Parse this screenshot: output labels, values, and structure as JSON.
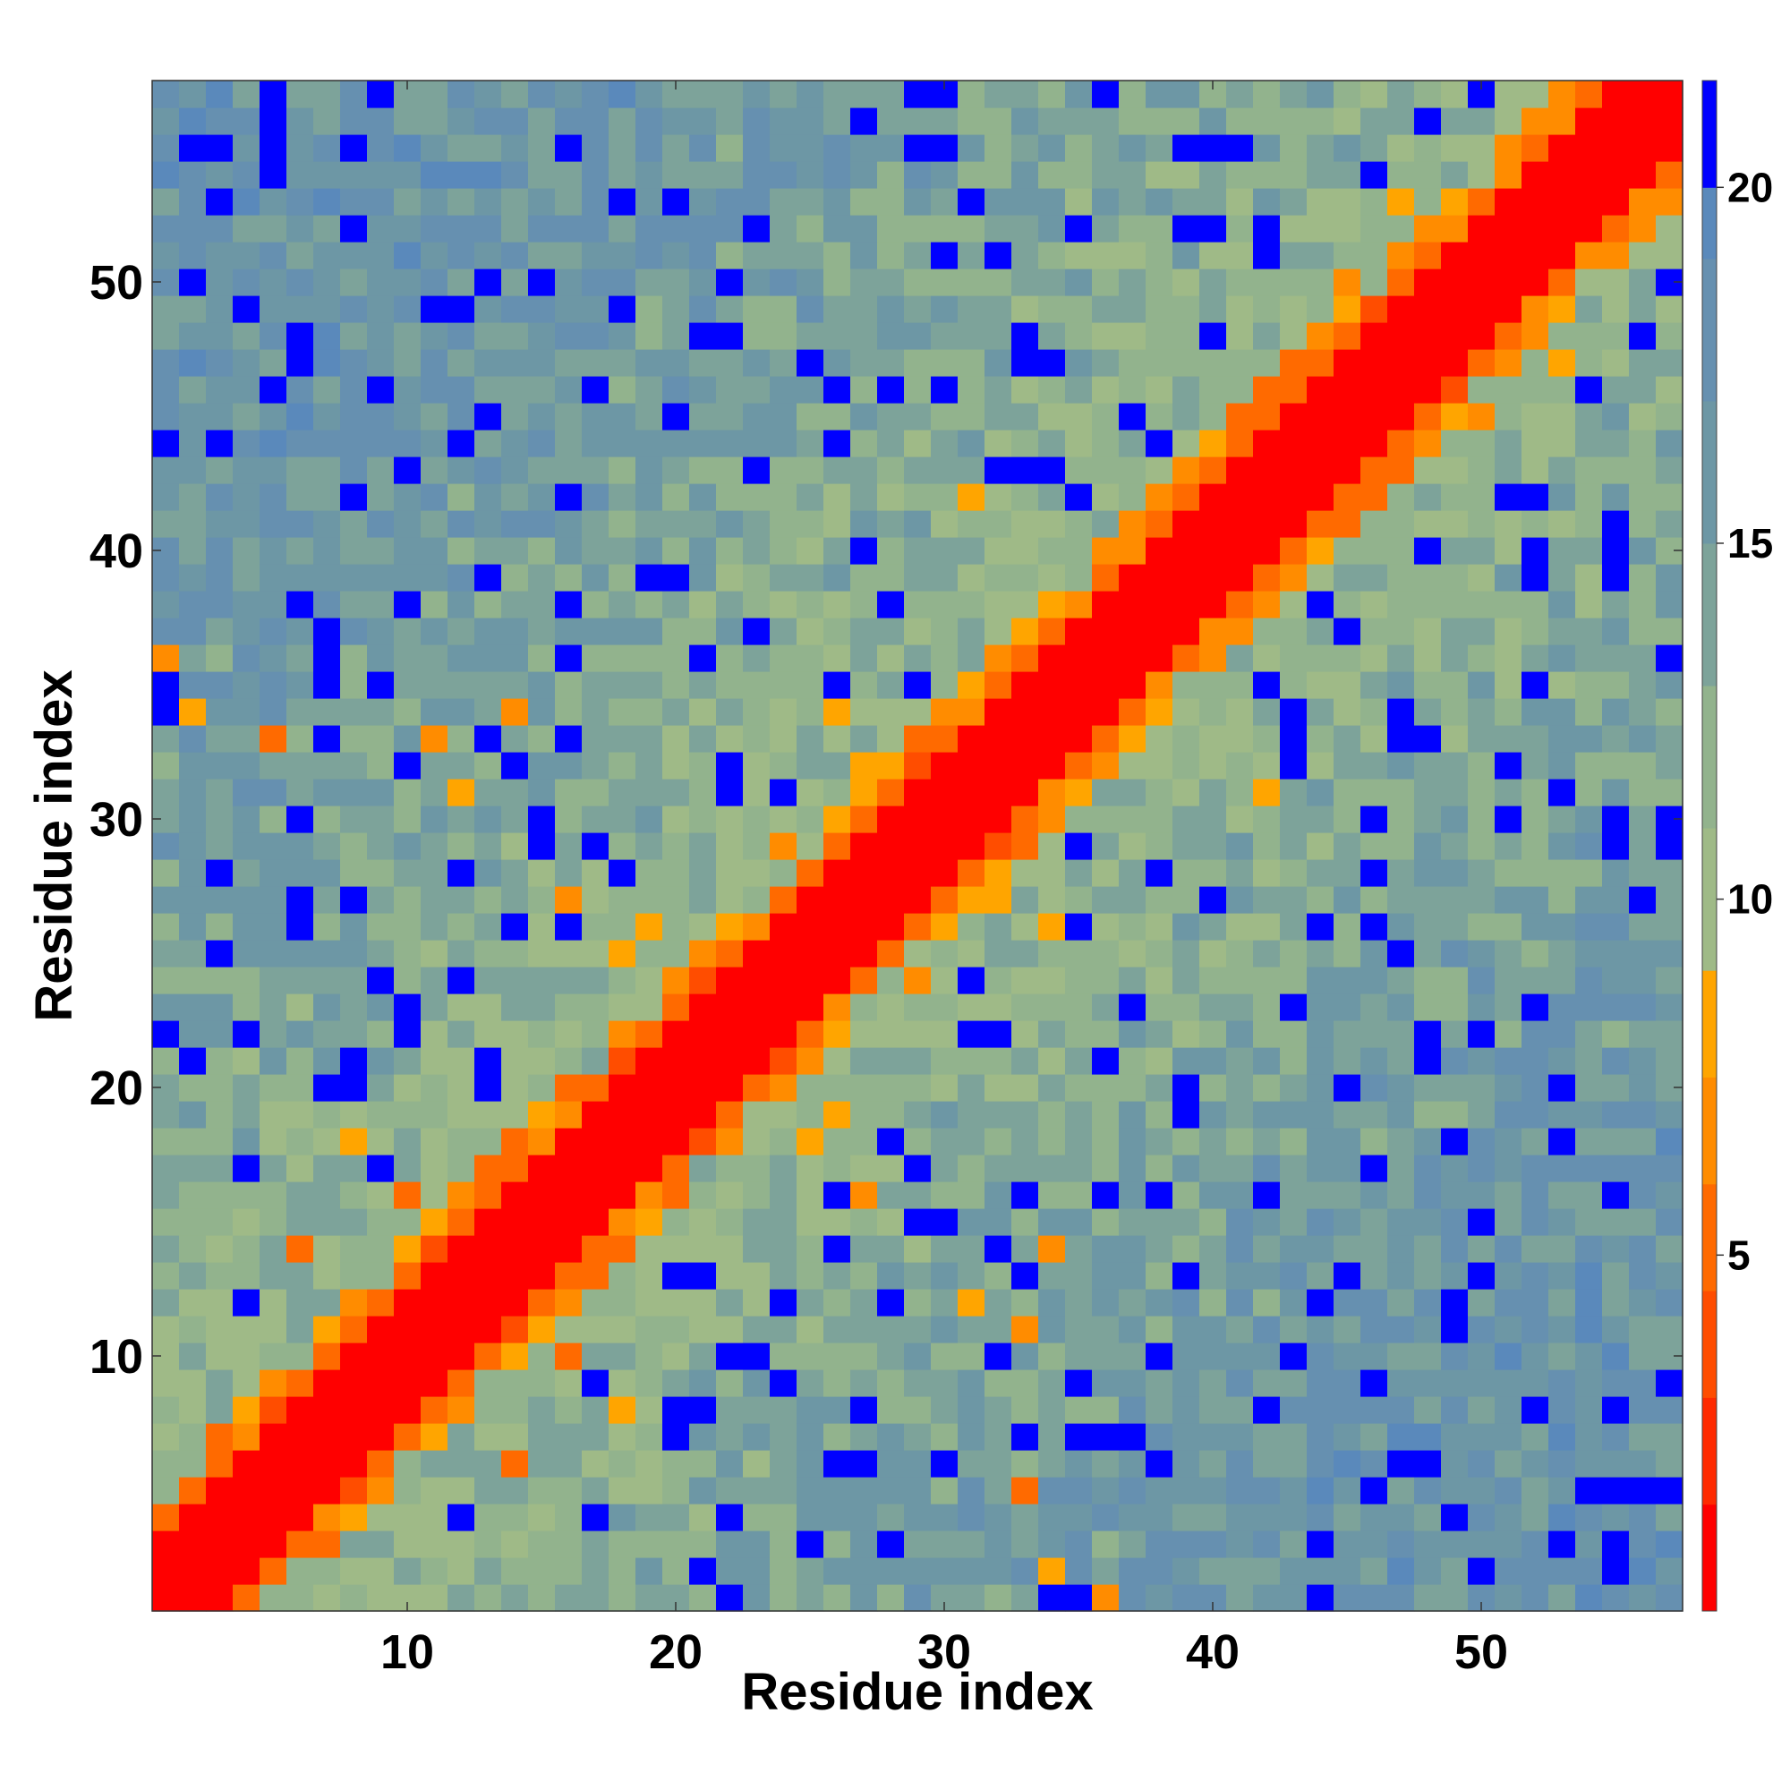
{
  "chart_data": {
    "type": "heatmap",
    "title": "",
    "xlabel": "Residue index",
    "ylabel": "Residue index",
    "xlim": [
      0.5,
      57.5
    ],
    "ylim": [
      0.5,
      57.5
    ],
    "xticks": [
      10,
      20,
      30,
      40,
      50
    ],
    "yticks": [
      10,
      20,
      30,
      40,
      50
    ],
    "n": 57,
    "colorbar": {
      "ticks": [
        5,
        10,
        15,
        20
      ],
      "range": [
        0,
        21.5
      ],
      "bands": [
        {
          "to": 1.5,
          "color": "#ff0000"
        },
        {
          "to": 3.0,
          "color": "#ff2a00"
        },
        {
          "to": 4.5,
          "color": "#ff4d00"
        },
        {
          "to": 6.0,
          "color": "#ff6a00"
        },
        {
          "to": 7.5,
          "color": "#ff8c00"
        },
        {
          "to": 9.0,
          "color": "#ffa500"
        },
        {
          "to": 11.0,
          "color": "#9fba87"
        },
        {
          "to": 13.0,
          "color": "#92b38d"
        },
        {
          "to": 15.0,
          "color": "#7da39a"
        },
        {
          "to": 17.0,
          "color": "#6d97a5"
        },
        {
          "to": 19.0,
          "color": "#6690b0"
        },
        {
          "to": 20.0,
          "color": "#5a89bb"
        },
        {
          "to": 21.5,
          "color": "#0000ff"
        }
      ]
    },
    "matrix_rule": "value(i,j) = distance between residue i and residue j; values approximate, read from the colour scale",
    "contacts": [
      [
        3,
        7
      ],
      [
        4,
        8
      ],
      [
        5,
        9
      ],
      [
        7,
        11
      ],
      [
        8,
        12
      ],
      [
        10,
        14
      ],
      [
        11,
        15
      ],
      [
        12,
        16
      ],
      [
        13,
        17
      ],
      [
        14,
        18
      ],
      [
        15,
        19
      ],
      [
        16,
        20
      ],
      [
        18,
        22
      ],
      [
        20,
        24
      ],
      [
        21,
        25
      ],
      [
        22,
        26
      ],
      [
        27,
        31
      ],
      [
        28,
        32
      ],
      [
        29,
        33
      ],
      [
        30,
        34
      ],
      [
        31,
        35
      ],
      [
        32,
        36
      ],
      [
        33,
        37
      ],
      [
        34,
        38
      ],
      [
        36,
        40
      ],
      [
        37,
        41
      ],
      [
        38,
        42
      ],
      [
        40,
        44
      ],
      [
        41,
        45
      ],
      [
        42,
        46
      ],
      [
        44,
        48
      ],
      [
        45,
        49
      ],
      [
        47,
        51
      ],
      [
        48,
        52
      ],
      [
        49,
        53
      ],
      [
        51,
        55
      ],
      [
        52,
        56
      ],
      [
        53,
        57
      ],
      [
        1,
        36
      ],
      [
        2,
        34
      ],
      [
        5,
        33
      ],
      [
        12,
        31
      ],
      [
        14,
        34
      ],
      [
        16,
        27
      ],
      [
        18,
        25
      ],
      [
        19,
        26
      ],
      [
        22,
        25
      ],
      [
        24,
        29
      ],
      [
        26,
        30
      ],
      [
        27,
        32
      ],
      [
        30,
        33
      ],
      [
        32,
        35
      ],
      [
        34,
        37
      ],
      [
        35,
        37
      ],
      [
        39,
        43
      ],
      [
        41,
        44
      ],
      [
        42,
        46
      ],
      [
        43,
        47
      ],
      [
        45,
        50
      ],
      [
        47,
        53
      ],
      [
        50,
        53
      ],
      [
        26,
        34
      ],
      [
        11,
        33
      ],
      [
        8,
        18
      ],
      [
        6,
        14
      ],
      [
        10,
        16
      ],
      [
        31,
        42
      ],
      [
        37,
        41
      ]
    ],
    "far_contacts": [
      [
        2,
        55
      ],
      [
        3,
        53
      ],
      [
        5,
        56
      ],
      [
        12,
        44
      ],
      [
        13,
        45
      ],
      [
        17,
        46
      ],
      [
        23,
        43
      ],
      [
        25,
        47
      ],
      [
        26,
        44
      ],
      [
        27,
        40
      ],
      [
        30,
        46
      ],
      [
        36,
        40
      ],
      [
        38,
        44
      ],
      [
        18,
        28
      ],
      [
        3,
        28
      ],
      [
        2,
        21
      ],
      [
        4,
        17
      ],
      [
        6,
        27
      ],
      [
        9,
        24
      ],
      [
        7,
        20
      ],
      [
        13,
        21
      ],
      [
        15,
        30
      ],
      [
        1,
        44
      ],
      [
        8,
        52
      ],
      [
        11,
        49
      ],
      [
        20,
        53
      ],
      [
        22,
        50
      ],
      [
        24,
        31
      ],
      [
        29,
        35
      ],
      [
        33,
        43
      ],
      [
        35,
        52
      ],
      [
        40,
        55
      ],
      [
        42,
        51
      ],
      [
        46,
        54
      ],
      [
        48,
        56
      ],
      [
        50,
        57
      ],
      [
        19,
        39
      ],
      [
        16,
        38
      ],
      [
        10,
        22
      ],
      [
        14,
        26
      ]
    ]
  }
}
